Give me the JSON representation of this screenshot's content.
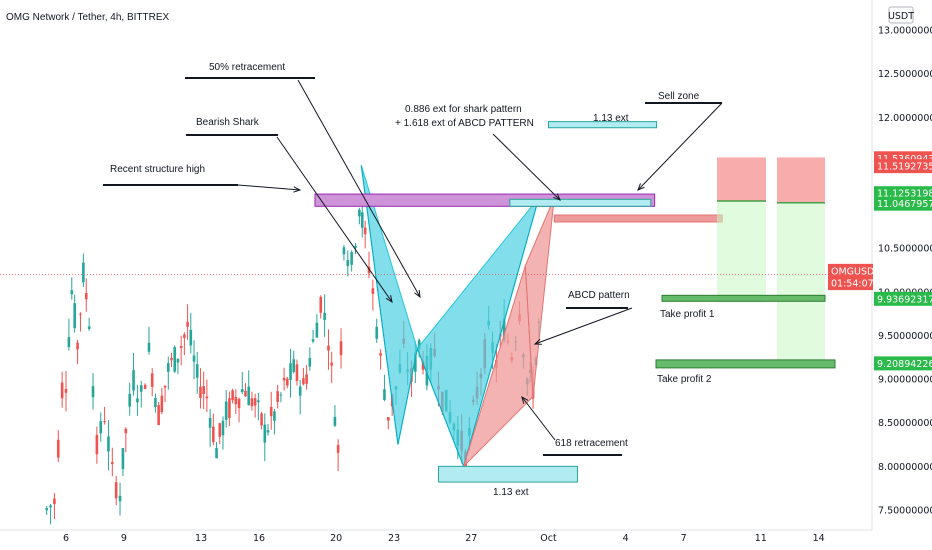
{
  "header": {
    "title": "OMG Network / Tether, 4h, BITTREX"
  },
  "currency_badge": "USDT",
  "colors": {
    "up": "#26a69a",
    "down": "#ef5350",
    "shark_fill": "#4dd0e1",
    "abcd_fill": "#ef9a9a",
    "purple_zone": "#ce93d8",
    "target_blue": "#b2ebf2",
    "sl_red": "#f8a3a3",
    "tp_green": "#c8f7c5"
  },
  "chart_data": {
    "type": "candlestick",
    "title": "OMG Network / Tether, 4h, BITTREX",
    "ylim": [
      7.4,
      13.1
    ],
    "y_ticks": [
      "13.00000000",
      "12.50000000",
      "12.00000000",
      "11.50000000",
      "11.00000000",
      "10.50000000",
      "10.00000000",
      "9.50000000",
      "9.00000000",
      "8.50000000",
      "8.00000000",
      "7.50000000"
    ],
    "x_ticks": [
      "6",
      "9",
      "13",
      "16",
      "20",
      "23",
      "27",
      "Oct",
      "4",
      "7",
      "11",
      "14"
    ],
    "price_labels": [
      {
        "text": "11.53609434",
        "kind": "red"
      },
      {
        "text": "11.51927350",
        "kind": "red"
      },
      {
        "text": "11.12531987",
        "kind": "green"
      },
      {
        "text": "11.04679570",
        "kind": "green"
      },
      {
        "text": "OMGUSDT",
        "kind": "current"
      },
      {
        "text": "01:54:07",
        "kind": "current"
      },
      {
        "text": "9.93692317",
        "kind": "green"
      },
      {
        "text": "9.20894226",
        "kind": "green"
      }
    ],
    "annotations": [
      "50% retracement",
      "Bearish Shark",
      "Recent structure high",
      "0.886 ext for shark pattern",
      "+ 1.618 ext of ABCD PATTERN",
      "1.13 ext",
      "Sell zone",
      "ABCD pattern",
      "Take profit 1",
      "Take profit 2",
      "618 retracement",
      "1.13 ext"
    ],
    "shark_pattern": [
      [
        21.3,
        11.45
      ],
      [
        23.2,
        8.25
      ],
      [
        24.2,
        9.35
      ],
      [
        26.6,
        8.0
      ],
      [
        30.5,
        11.08
      ]
    ],
    "abcd_pattern": [
      [
        26.6,
        8.0
      ],
      [
        29.8,
        10.3
      ],
      [
        30.2,
        8.8
      ],
      [
        31.3,
        11.08
      ]
    ],
    "zones": [
      {
        "label": "Recent structure high",
        "x": [
          18.9,
          36.5
        ],
        "y": [
          10.98,
          11.12
        ],
        "color": "purple"
      },
      {
        "label": "shark ext box",
        "x": [
          29.0,
          36.3
        ],
        "y": [
          10.98,
          11.06
        ],
        "color": "blue"
      },
      {
        "label": "1.13 ext top",
        "x": [
          31.0,
          36.6
        ],
        "y": [
          11.88,
          11.95
        ],
        "color": "blue"
      },
      {
        "label": "ABCD ext",
        "x": [
          31.3,
          40.0
        ],
        "y": [
          10.8,
          10.88
        ],
        "color": "red"
      },
      {
        "label": "1.13 ext bottom",
        "x": [
          25.3,
          32.5
        ],
        "y": [
          7.82,
          8.0
        ],
        "color": "blue"
      }
    ]
  }
}
